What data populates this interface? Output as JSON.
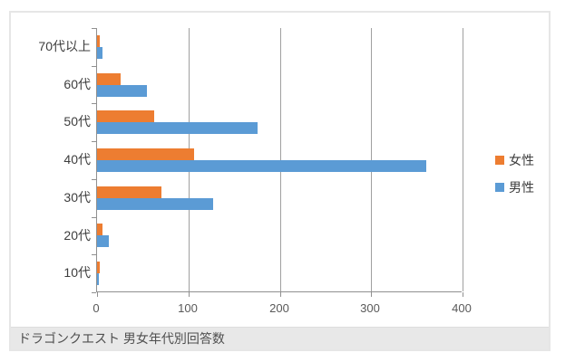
{
  "caption": "ドラゴンクエスト 男女年代別回答数",
  "chart_data": {
    "type": "bar",
    "orientation": "horizontal",
    "title": "ドラゴンクエスト 男女年代別回答数",
    "categories": [
      "70代以上",
      "60代",
      "50代",
      "40代",
      "30代",
      "20代",
      "10代"
    ],
    "series": [
      {
        "name": "女性",
        "color": "#ED7D31",
        "values": [
          3,
          26,
          63,
          106,
          70,
          6,
          3
        ]
      },
      {
        "name": "男性",
        "color": "#5B9BD5",
        "values": [
          6,
          55,
          176,
          360,
          127,
          13,
          2
        ]
      }
    ],
    "x_axis": {
      "min": 0,
      "max": 400,
      "ticks": [
        0,
        100,
        200,
        300,
        400
      ]
    },
    "y_axis_label": "",
    "xlabel": "",
    "ylabel": "",
    "grid": true,
    "legend_position": "right"
  },
  "colors": {
    "female": "#ED7D31",
    "male": "#5B9BD5",
    "gridline": "#a0a0a0",
    "caption_background": "#e8e8e8"
  }
}
